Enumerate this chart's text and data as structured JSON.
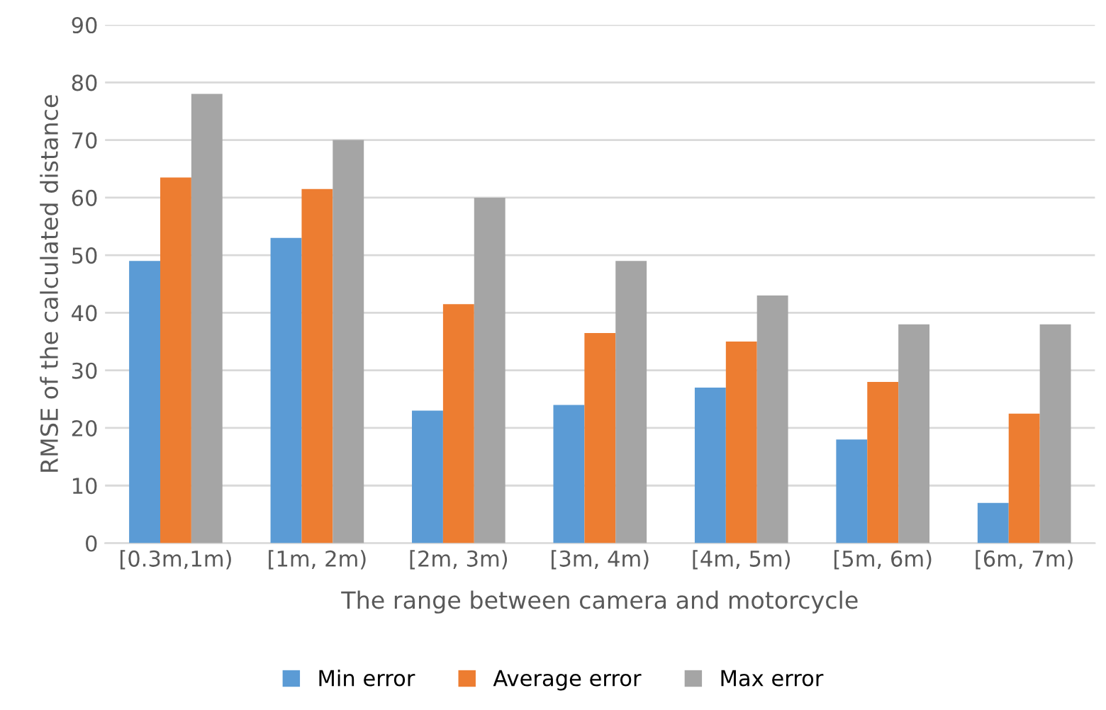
{
  "chart_data": {
    "type": "bar",
    "xlabel": "The range between camera and motorcycle",
    "ylabel": "RMSE of the calculated distance",
    "categories": [
      "[0.3m,1m)",
      "[1m, 2m)",
      "[2m, 3m)",
      "[3m, 4m)",
      "[4m, 5m)",
      "[5m, 6m)",
      "[6m, 7m)"
    ],
    "series": [
      {
        "name": "Min error",
        "color": "#5b9bd5",
        "values": [
          49,
          53,
          23,
          24,
          27,
          18,
          7
        ]
      },
      {
        "name": "Average error",
        "color": "#ed7d31",
        "values": [
          63.5,
          61.5,
          41.5,
          36.5,
          35,
          28,
          22.5
        ]
      },
      {
        "name": "Max error",
        "color": "#a5a5a5",
        "values": [
          78,
          70,
          60,
          49,
          43,
          38,
          38
        ]
      }
    ],
    "ylim": [
      0,
      90
    ],
    "yticks": [
      0,
      10,
      20,
      30,
      40,
      50,
      60,
      70,
      80,
      90
    ],
    "grid": "y",
    "legend": "bottom"
  }
}
